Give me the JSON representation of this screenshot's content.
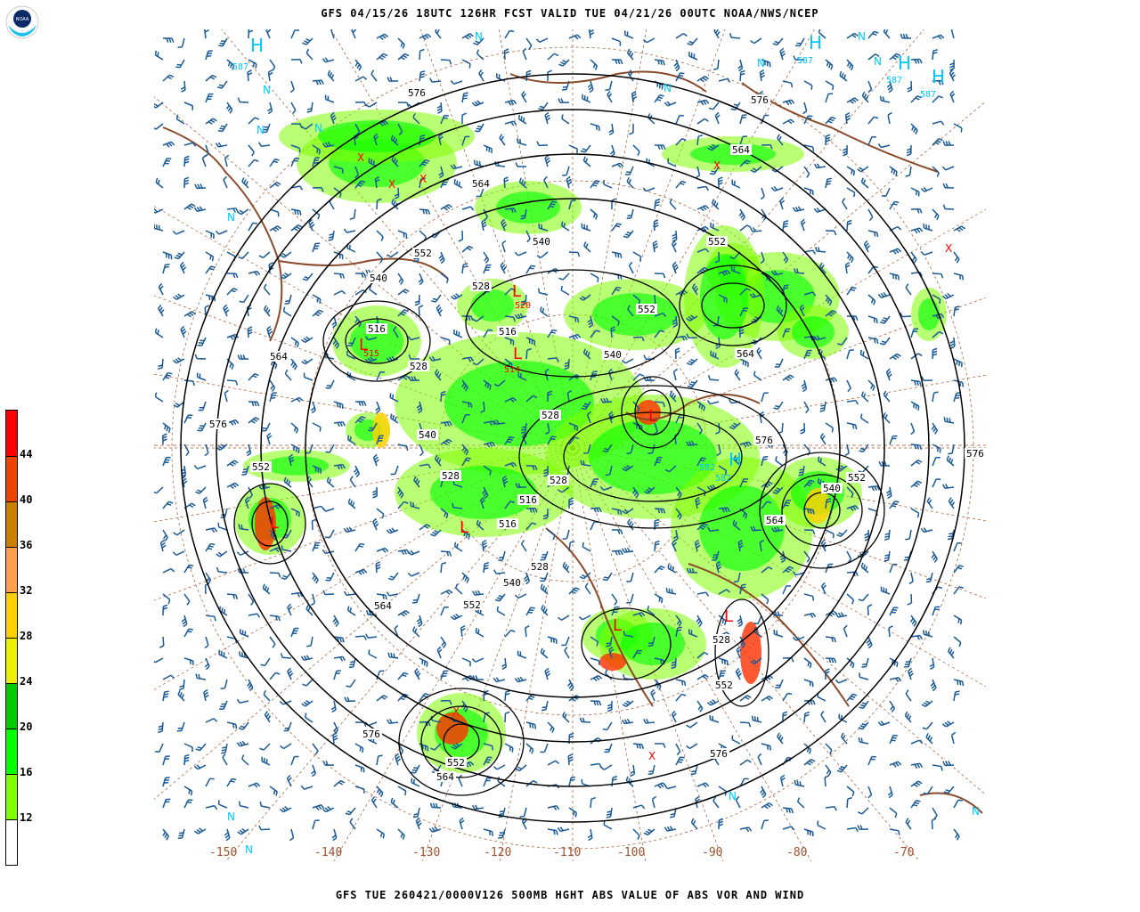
{
  "header": {
    "title": "GFS 04/15/26 18UTC 126HR FCST VALID TUE 04/21/26 00UTC NOAA/NWS/NCEP"
  },
  "footer": {
    "caption": "GFS TUE 260421/0000V126 500MB HGHT ABS VALUE OF ABS VOR AND WIND"
  },
  "logo": {
    "text": "NOAA"
  },
  "colorbar": {
    "labels": [
      "44",
      "40",
      "36",
      "32",
      "28",
      "24",
      "20",
      "16",
      "12"
    ],
    "colors": [
      "#ff0000",
      "#ee4400",
      "#cc8000",
      "#ffa050",
      "#ffd000",
      "#eeee00",
      "#00cc00",
      "#00ff00",
      "#80ff00",
      "#ffffff"
    ]
  },
  "map": {
    "colors": {
      "height_contour": "#000000",
      "wind_barb": "#1a5a96",
      "coastline": "#8b4a2a",
      "grid": "#a0522d",
      "high": "#00c8ff",
      "low": "#ff0000"
    },
    "longitude_labels": [
      "-150",
      "-140",
      "-130",
      "-120",
      "-110",
      "-100",
      "-90",
      "-80",
      "-70"
    ],
    "contour_labels": [
      "576",
      "576",
      "564",
      "564",
      "552",
      "552",
      "540",
      "540",
      "528",
      "516",
      "516",
      "528",
      "564",
      "576",
      "552",
      "540",
      "528",
      "528",
      "540",
      "552",
      "576",
      "576",
      "564",
      "576",
      "564",
      "552",
      "576",
      "564",
      "552",
      "540",
      "528",
      "528",
      "516",
      "516",
      "528",
      "552",
      "564",
      "552",
      "540"
    ],
    "low_labels": [
      "520",
      "515",
      "514"
    ],
    "high_labels": [
      "587",
      "587",
      "587",
      "587",
      "582",
      "582"
    ],
    "markers": {
      "high": "H",
      "low": "L",
      "n": "N",
      "x": "X"
    }
  }
}
